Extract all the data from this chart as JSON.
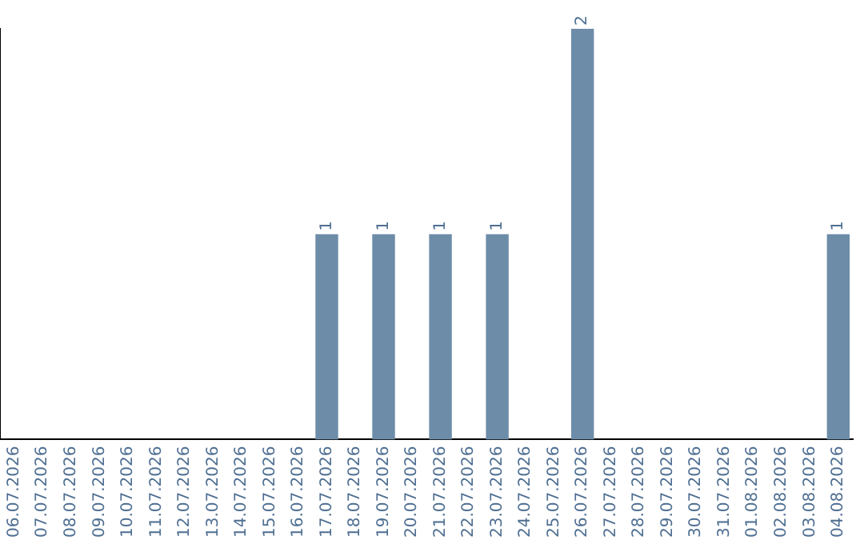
{
  "chart_data": {
    "type": "bar",
    "categories": [
      "06.07.2026",
      "07.07.2026",
      "08.07.2026",
      "09.07.2026",
      "10.07.2026",
      "11.07.2026",
      "12.07.2026",
      "13.07.2026",
      "14.07.2026",
      "15.07.2026",
      "16.07.2026",
      "17.07.2026",
      "18.07.2026",
      "19.07.2026",
      "20.07.2026",
      "21.07.2026",
      "22.07.2026",
      "23.07.2026",
      "24.07.2026",
      "25.07.2026",
      "26.07.2026",
      "27.07.2026",
      "28.07.2026",
      "29.07.2026",
      "30.07.2026",
      "31.07.2026",
      "01.08.2026",
      "02.08.2026",
      "03.08.2026",
      "04.08.2026"
    ],
    "values": [
      0,
      0,
      0,
      0,
      0,
      0,
      0,
      0,
      0,
      0,
      0,
      1,
      0,
      1,
      0,
      1,
      0,
      1,
      0,
      0,
      2,
      0,
      0,
      0,
      0,
      0,
      0,
      0,
      0,
      1
    ],
    "value_labels": [
      null,
      null,
      null,
      null,
      null,
      null,
      null,
      null,
      null,
      null,
      null,
      "1",
      null,
      "1",
      null,
      "1",
      null,
      "1",
      null,
      null,
      "2",
      null,
      null,
      null,
      null,
      null,
      null,
      null,
      null,
      "1"
    ],
    "color": "#6d8ca8",
    "ylim": [
      0,
      2
    ],
    "grid": false,
    "legend": false,
    "tick_labels": "x"
  }
}
